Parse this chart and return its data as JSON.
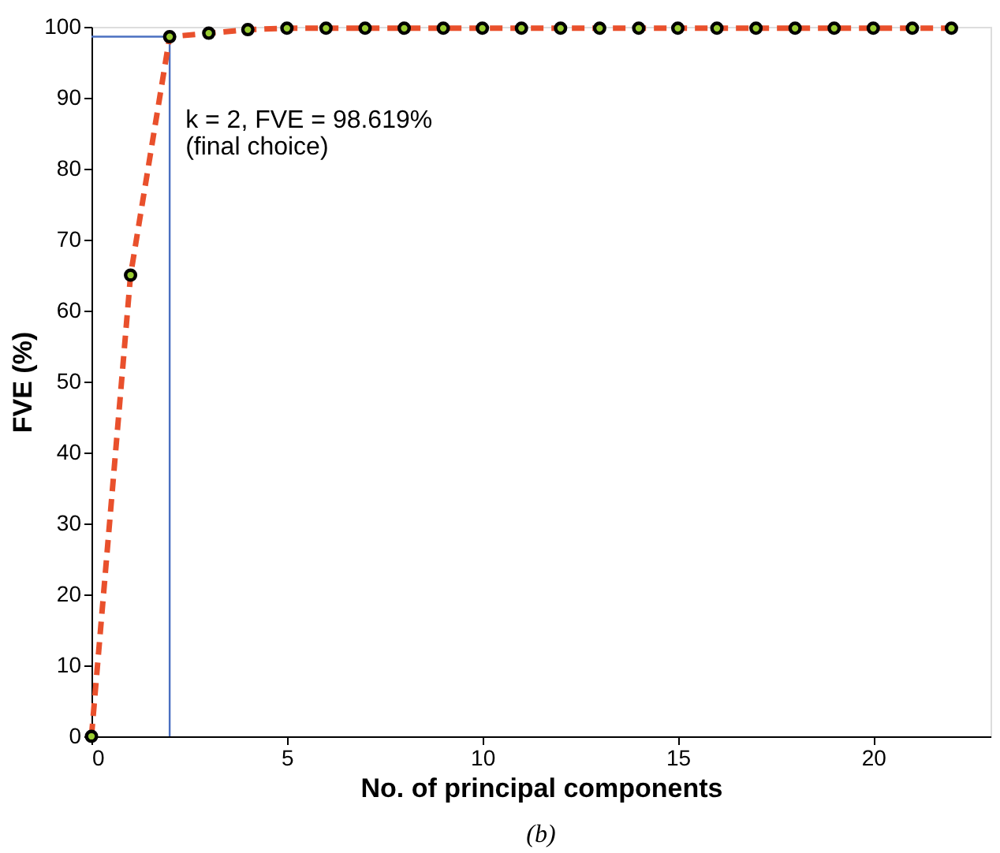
{
  "chart_data": {
    "type": "line",
    "xlabel": "No. of principal components",
    "ylabel": "FVE (%)",
    "x": [
      0,
      1,
      2,
      3,
      4,
      5,
      6,
      7,
      8,
      9,
      10,
      11,
      12,
      13,
      14,
      15,
      16,
      17,
      18,
      19,
      20,
      21,
      22
    ],
    "series": [
      {
        "color": "#e9502c",
        "values": [
          0,
          65,
          98.6,
          99.1,
          99.6,
          99.8,
          99.8,
          99.8,
          99.8,
          99.8,
          99.8,
          99.8,
          99.8,
          99.8,
          99.8,
          99.8,
          99.8,
          99.8,
          99.8,
          99.8,
          99.8,
          99.8,
          99.8
        ]
      }
    ],
    "marker": "circle",
    "line_style": "dashed",
    "grid": false,
    "xlim": [
      0,
      23
    ],
    "ylim": [
      0,
      100
    ],
    "xticks": [
      0,
      5,
      10,
      15,
      20
    ],
    "yticks": [
      0,
      10,
      20,
      30,
      40,
      50,
      60,
      70,
      80,
      90,
      100
    ],
    "ref_lines": [
      {
        "axis": "x",
        "value": 2,
        "color": "#4a6fc1"
      },
      {
        "axis": "y",
        "value": 98.619,
        "color": "#4a6fc1"
      }
    ],
    "annotations": [
      {
        "text": "k = 2, FVE = 98.619%\n(final choice)",
        "x": 2,
        "y": 98.619
      },
      "(b)"
    ]
  }
}
